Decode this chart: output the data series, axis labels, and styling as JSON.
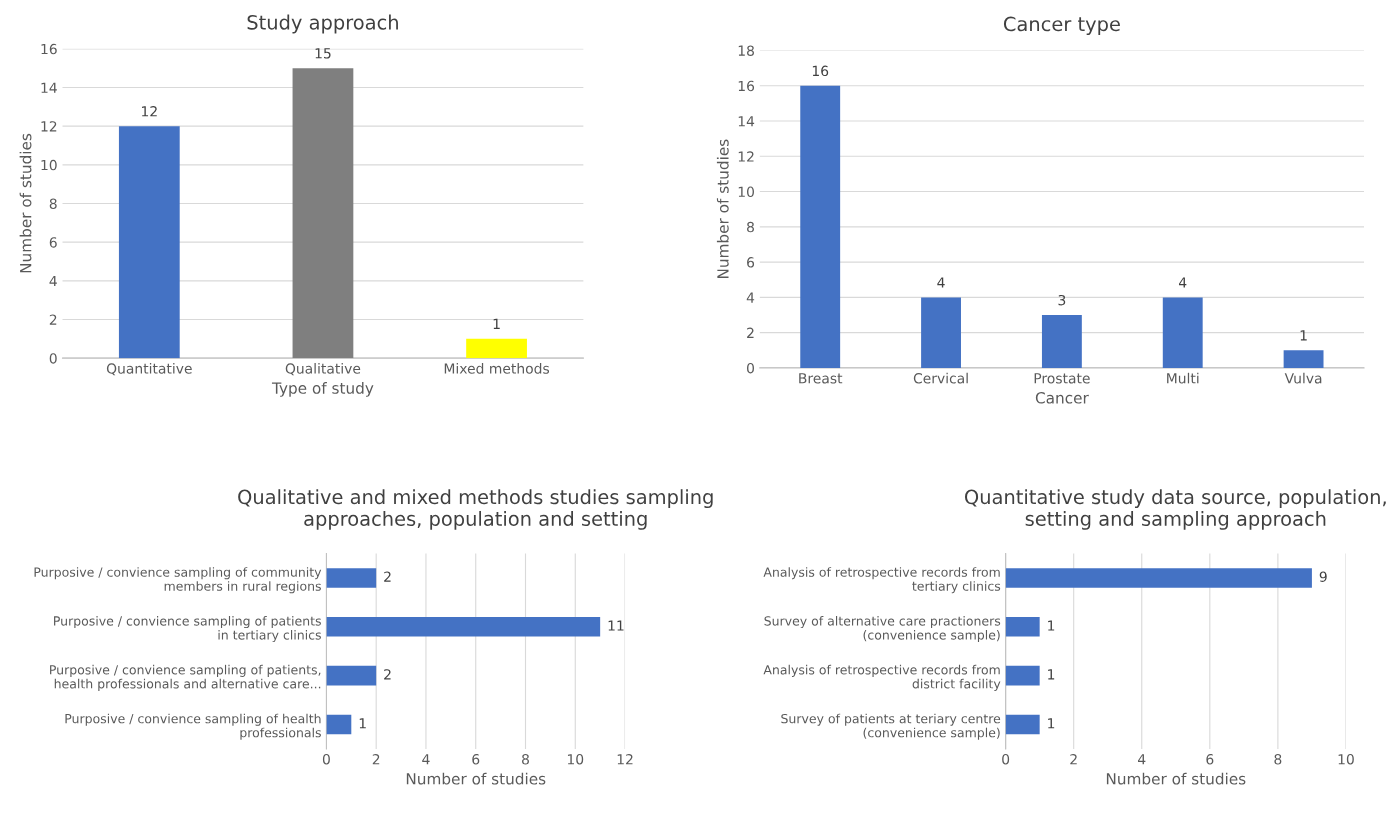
{
  "chart_data": [
    {
      "type": "bar",
      "title": "Study approach",
      "xlabel": "Type of study",
      "ylabel": "Number of studies",
      "categories": [
        "Quantitative",
        "Qualitative",
        "Mixed methods"
      ],
      "values": [
        12,
        15,
        1
      ],
      "colors": [
        "#4472c4",
        "#7f7f7f",
        "#ffff00"
      ],
      "ylim": [
        0,
        16
      ],
      "yticks": [
        0,
        2,
        4,
        6,
        8,
        10,
        12,
        14,
        16
      ],
      "grid": "y",
      "data_labels": true,
      "legend": false
    },
    {
      "type": "bar",
      "title": "Cancer type",
      "xlabel": "Cancer",
      "ylabel": "Number of studies",
      "categories": [
        "Breast",
        "Cervical",
        "Prostate",
        "Multi",
        "Vulva"
      ],
      "values": [
        16,
        4,
        3,
        4,
        1
      ],
      "color": "#4472c4",
      "ylim": [
        0,
        18
      ],
      "yticks": [
        0,
        2,
        4,
        6,
        8,
        10,
        12,
        14,
        16,
        18
      ],
      "grid": "y",
      "data_labels": true,
      "legend": false
    },
    {
      "type": "bar",
      "orientation": "horizontal",
      "title": "Qualitative and mixed methods studies sampling approaches, population and setting",
      "xlabel": "Number of studies",
      "categories": [
        "Purposive / convience sampling of community members in rural regions",
        "Purposive / convience sampling of patients in tertiary clinics",
        "Purposive / convience sampling of patients, health professionals and alternative care...",
        "Purposive / convience sampling of health professionals"
      ],
      "values": [
        2,
        11,
        2,
        1
      ],
      "color": "#4472c4",
      "xlim": [
        0,
        12
      ],
      "xticks": [
        0,
        2,
        4,
        6,
        8,
        10,
        12
      ],
      "grid": "x",
      "data_labels": true,
      "legend": false
    },
    {
      "type": "bar",
      "orientation": "horizontal",
      "title": "Quantitative study data source, population, setting and sampling approach",
      "xlabel": "Number of studies",
      "categories": [
        "Analysis of retrospective records from tertiary clinics",
        "Survey of alternative care practioners (convenience sample)",
        "Analysis of retrospective records from district facility",
        "Survey of patients at teriary centre (convenience sample)"
      ],
      "values": [
        9,
        1,
        1,
        1
      ],
      "color": "#4472c4",
      "xlim": [
        0,
        10
      ],
      "xticks": [
        0,
        2,
        4,
        6,
        8,
        10
      ],
      "grid": "x",
      "data_labels": true,
      "legend": false
    }
  ]
}
